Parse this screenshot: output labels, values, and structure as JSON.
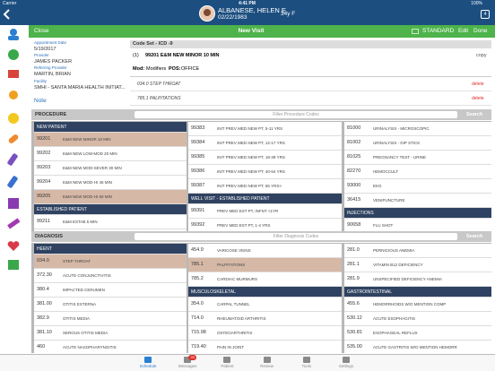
{
  "status": {
    "carrier": "Carrier",
    "time": "4:41 PM",
    "battery": "100%"
  },
  "patient": {
    "name": "ALBANESE, HELEN E",
    "dob": "02/22/1983",
    "age_sex": "34y F",
    "badge": "4"
  },
  "toolbar": {
    "close": "Close",
    "title": "New Visit",
    "template": "STANDARD",
    "edit": "Edit",
    "done": "Done"
  },
  "visit": {
    "fields": [
      {
        "label": "Appointment Date",
        "value": "5/19/2017"
      },
      {
        "label": "Provider",
        "value": "JAMES PACKER"
      },
      {
        "label": "Referring Provider",
        "value": "MARTIN, BRIAN"
      },
      {
        "label": "Facility",
        "value": "SMHI - SANTA MARIA HEALTH INITIAT..."
      }
    ],
    "note": "Note"
  },
  "codes": {
    "heading": "Code Set - ICD -9",
    "index": "(1)",
    "procedure": "99201 E&M NEW MINOR 10 MIN",
    "copy": "copy",
    "mod_label": "Mod:",
    "mod": "Modifiers",
    "pos_label": "POS:",
    "pos": "OFFICE",
    "diagnoses": [
      {
        "text": "034.0 STEP THROAT",
        "action": "delete"
      },
      {
        "text": "785.1 PALPITATIONS",
        "action": "delete"
      }
    ]
  },
  "procedure": {
    "label": "PROCEDURE",
    "filter": "Filter Procedure Codes",
    "search": "Search",
    "columns": [
      [
        {
          "header": "NEW PATIENT"
        },
        {
          "code": "99201",
          "desc": "E&M NEW MINOR 10 MIN",
          "selected": true
        },
        {
          "code": "99202",
          "desc": "E&M NEW LOW-MOD 20 MIN"
        },
        {
          "code": "99203",
          "desc": "E&M NEW MOD-SEVER 30 MIN"
        },
        {
          "code": "99204",
          "desc": "E&M NEW MOD-HI 45 MIN"
        },
        {
          "code": "99205",
          "desc": "E&M NEW MOD-HI 60 MIN",
          "selected": true
        },
        {
          "header": "ESTABLISHED PATIENT"
        },
        {
          "code": "99211",
          "desc": "E&M ESTAB 5 MIN"
        }
      ],
      [
        {
          "code": "99383",
          "desc": "INIT PREV MED   NEW PT, 5-11 YRS"
        },
        {
          "code": "99384",
          "desc": "INIT PREV MED   NEW PT, 12-17 YRS"
        },
        {
          "code": "99385",
          "desc": "INIT PREV MED   NEW PT, 18-39 YRS"
        },
        {
          "code": "99386",
          "desc": "INIT PREV MED   NEW PT, 40-64 YRS"
        },
        {
          "code": "99387",
          "desc": "INIT PREV MED   NEW PT, 65 YRS>"
        },
        {
          "header": "WELL VISIT - ESTABLISHED PATIENT"
        },
        {
          "code": "99391",
          "desc": "PREV MED   EST PT, INFNT <1YR"
        },
        {
          "code": "99392",
          "desc": "PREV MED   EST PT, 1-4 YRS"
        }
      ],
      [
        {
          "code": "81000",
          "desc": "URINALYSIS - MICROSCOPIC"
        },
        {
          "code": "81002",
          "desc": "URINALYSIS - DIP STICK"
        },
        {
          "code": "81025",
          "desc": "PREGNANCY TEST - URINE"
        },
        {
          "code": "82270",
          "desc": "HEMOCCULT"
        },
        {
          "code": "93000",
          "desc": "EKG"
        },
        {
          "code": "36415",
          "desc": "VENIPUNCTURE"
        },
        {
          "header": "INJECTIONS"
        },
        {
          "code": "90658",
          "desc": "FLU SHOT"
        }
      ]
    ]
  },
  "diagnosis": {
    "label": "DIAGNOSIS",
    "filter": "Filter Diagnosis Codes",
    "search": "Search",
    "columns": [
      [
        {
          "header": "HEENT"
        },
        {
          "code": "034.0",
          "desc": "STEP THROAT",
          "selected": true
        },
        {
          "code": "372.30",
          "desc": "ACUTE CONJUNCTIVITIS"
        },
        {
          "code": "380.4",
          "desc": "IMPACTED CERUMEN"
        },
        {
          "code": "381.00",
          "desc": "OTITIS EXTERNA"
        },
        {
          "code": "382.9",
          "desc": "OTITIS MEDIA"
        },
        {
          "code": "381.10",
          "desc": "SEROUS OTITIS MEDIA"
        },
        {
          "code": "460",
          "desc": "ACUTE NASOPHARYNGITIS"
        }
      ],
      [
        {
          "code": "454.9",
          "desc": "VARICOSE VEINS"
        },
        {
          "code": "785.1",
          "desc": "PALPITATIONS",
          "selected": true
        },
        {
          "code": "785.2",
          "desc": "CARDIAC MURMURS"
        },
        {
          "header": "MUSCULOSKELETAL"
        },
        {
          "code": "354.0",
          "desc": "CARPAL TUNNEL"
        },
        {
          "code": "714.0",
          "desc": "RHEUMATOID ARTHRITIS"
        },
        {
          "code": "715.98",
          "desc": "OSTEOARTHRITIS"
        },
        {
          "code": "719.40",
          "desc": "PAIN IN JOINT"
        }
      ],
      [
        {
          "code": "281.0",
          "desc": "PERNICIOUS ANEMIA"
        },
        {
          "code": "281.1",
          "desc": "VITAMIN B12 DEFICIENCY"
        },
        {
          "code": "281.9",
          "desc": "UNSPECIFIED DEFICIENCY ANEMIA"
        },
        {
          "header": "GASTROINTESTINAL"
        },
        {
          "code": "455.6",
          "desc": "HEMORRHOIDS W/O MENTION COMP"
        },
        {
          "code": "530.12",
          "desc": "ACUTE ESOPHAGITIS"
        },
        {
          "code": "530.81",
          "desc": "ESOPHAGEAL REFLUX"
        },
        {
          "code": "535.00",
          "desc": "ACUTE GASTRITIS W/O MENTION HEMORR"
        }
      ]
    ]
  },
  "tabs": [
    {
      "label": "Schedule",
      "active": true
    },
    {
      "label": "Messages",
      "badge": "20"
    },
    {
      "label": "Patient"
    },
    {
      "label": "Review"
    },
    {
      "label": "Tools"
    },
    {
      "label": "Settings"
    }
  ]
}
